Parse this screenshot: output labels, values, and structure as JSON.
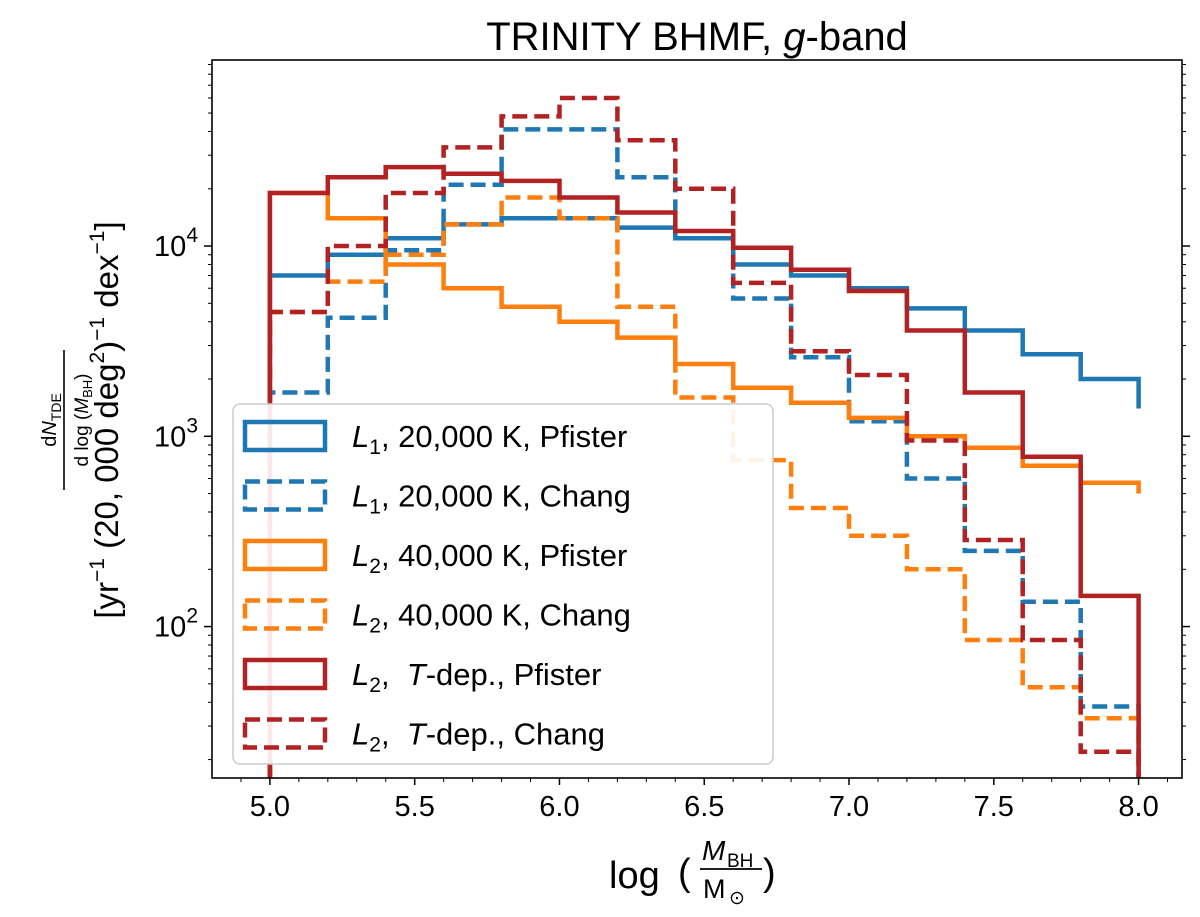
{
  "chart_data": {
    "type": "line",
    "drawstyle": "steps",
    "title": {
      "prefix": "TRINITY BHMF, ",
      "italic": "g",
      "suffix": "-band"
    },
    "xlabel": {
      "prefix": "log",
      "numerator": "M",
      "numerator_sub": "BH",
      "denominator": "M",
      "denominator_sub": "⊙"
    },
    "ylabel": {
      "fraction_numerator": "dN_TDE",
      "fraction_denominator": "d log (M_BH)",
      "units": "[yr⁻¹ (20, 000 deg²)⁻¹ dex⁻¹]"
    },
    "xlim": [
      4.8,
      8.15
    ],
    "ylim": [
      16,
      95000
    ],
    "yscale": "log",
    "x_ticks": [
      "5.0",
      "5.5",
      "6.0",
      "6.5",
      "7.0",
      "7.5",
      "8.0"
    ],
    "y_ticks": [
      {
        "base": "10",
        "exp": "2",
        "value": 100
      },
      {
        "base": "10",
        "exp": "3",
        "value": 1000
      },
      {
        "base": "10",
        "exp": "4",
        "value": 10000
      }
    ],
    "bin_edges": [
      5.0,
      5.2,
      5.4,
      5.6,
      5.8,
      6.0,
      6.2,
      6.4,
      6.6,
      6.8,
      7.0,
      7.2,
      7.4,
      7.6,
      7.8,
      8.0
    ],
    "legend_position": "lower-left",
    "series": [
      {
        "name": "L1, 20,000 K, Pfister",
        "label_main": "L",
        "label_sub": "1",
        "label_rest": ", 20,000 K, Pfister",
        "label_italic": "",
        "label_tail": "",
        "color": "#1f77b4",
        "dashed": false,
        "values": [
          7000,
          9000,
          11000,
          13000,
          14000,
          14000,
          12500,
          11000,
          8000,
          7000,
          6000,
          4700,
          3600,
          2700,
          2000,
          1400
        ]
      },
      {
        "name": "L1, 20,000 K, Chang",
        "label_main": "L",
        "label_sub": "1",
        "label_rest": ", 20,000 K, Chang",
        "label_italic": "",
        "label_tail": "",
        "color": "#1f77b4",
        "dashed": true,
        "values": [
          1700,
          4200,
          9500,
          21000,
          41000,
          41000,
          23000,
          11000,
          5300,
          2600,
          1200,
          600,
          250,
          135,
          38
        ]
      },
      {
        "name": "L2, 40,000 K, Pfister",
        "label_main": "L",
        "label_sub": "2",
        "label_rest": ", 40,000 K, Pfister",
        "label_italic": "",
        "label_tail": "",
        "color": "#ff7f0e",
        "dashed": false,
        "values": [
          19000,
          14000,
          8000,
          6000,
          4800,
          4000,
          3300,
          2400,
          1800,
          1500,
          1250,
          1000,
          870,
          700,
          570,
          500
        ]
      },
      {
        "name": "L2, 40,000 K, Chang",
        "label_main": "L",
        "label_sub": "2",
        "label_rest": ", 40,000 K, Chang",
        "label_italic": "",
        "label_tail": "",
        "color": "#ff7f0e",
        "dashed": true,
        "values": [
          4500,
          6500,
          9000,
          13000,
          18000,
          14000,
          4800,
          1600,
          750,
          420,
          300,
          200,
          85,
          48,
          33
        ]
      },
      {
        "name": "L2, T-dep., Pfister",
        "label_main": "L",
        "label_sub": "2",
        "label_rest": ",  ",
        "label_italic": "T",
        "label_tail": "-dep., Pfister",
        "color": "#b22222",
        "dashed": false,
        "values": [
          19000,
          23000,
          26000,
          24000,
          22000,
          18000,
          15000,
          12000,
          9800,
          7500,
          5800,
          3600,
          1700,
          780,
          145
        ]
      },
      {
        "name": "L2, T-dep., Chang",
        "label_main": "L",
        "label_sub": "2",
        "label_rest": ",  ",
        "label_italic": "T",
        "label_tail": "-dep., Chang",
        "color": "#b22222",
        "dashed": true,
        "values": [
          4500,
          10000,
          19000,
          33000,
          48000,
          60000,
          36000,
          20000,
          6400,
          2800,
          2100,
          950,
          285,
          85,
          22,
          14
        ]
      }
    ]
  }
}
